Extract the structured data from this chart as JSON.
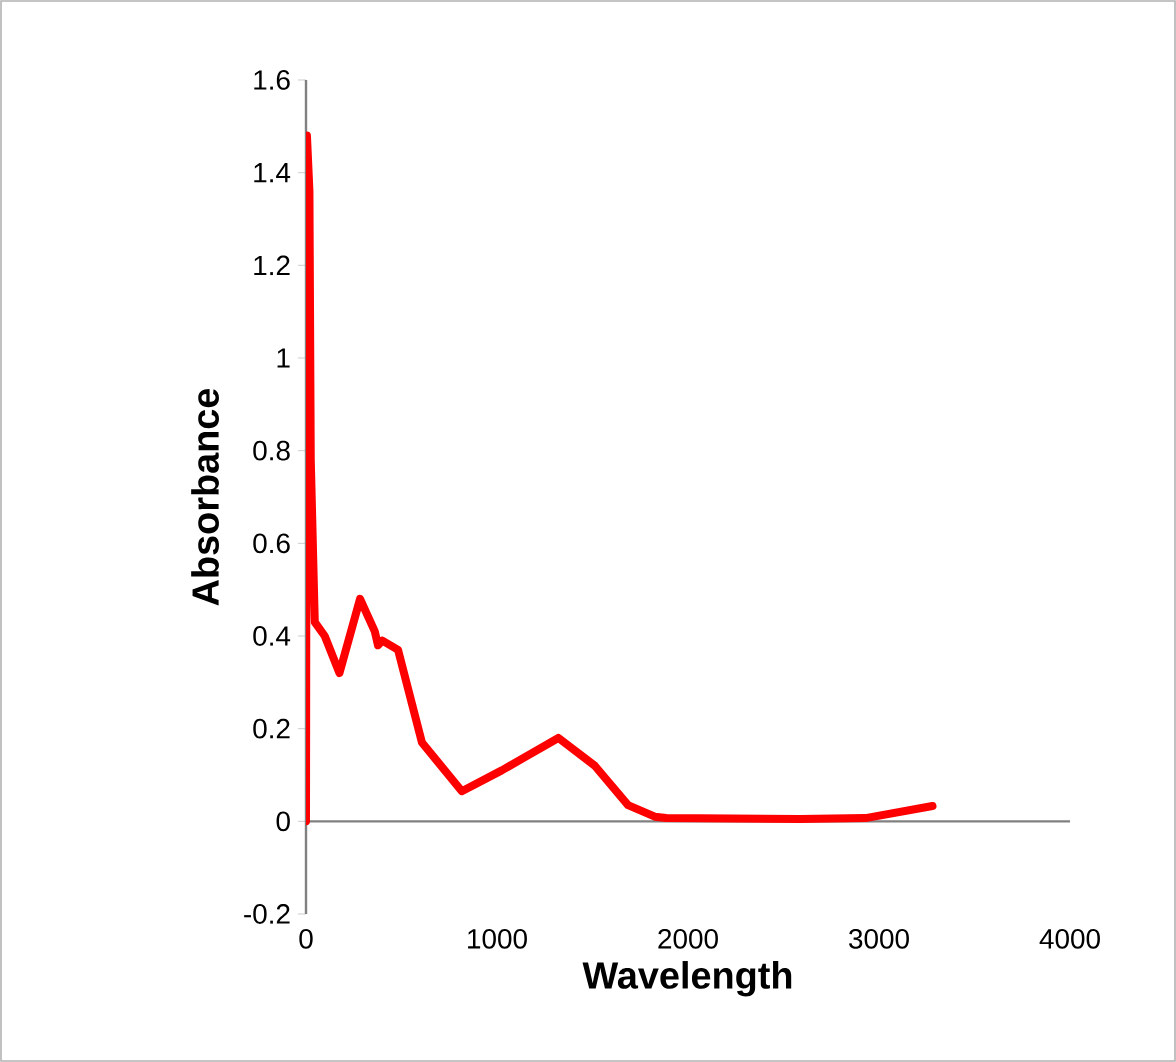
{
  "chart_data": {
    "type": "line",
    "xlabel": "Wavelength",
    "ylabel": "Absorbance",
    "x": [
      0,
      5,
      18,
      25,
      46,
      98,
      175,
      283,
      360,
      377,
      400,
      482,
      607,
      816,
      1025,
      1321,
      1512,
      1686,
      1826,
      1886,
      2586,
      2930,
      3280
    ],
    "series": [
      {
        "color": "#ff0000",
        "values": [
          0,
          1.48,
          1.36,
          0.78,
          0.43,
          0.4,
          0.32,
          0.48,
          0.41,
          0.38,
          0.39,
          0.37,
          0.17,
          0.065,
          0.11,
          0.18,
          0.12,
          0.035,
          0.01,
          0.007,
          0.005,
          0.007,
          0.033
        ]
      }
    ],
    "xlim": [
      0,
      4000
    ],
    "xticks": [
      0,
      1000,
      2000,
      3000,
      4000
    ],
    "ylim": [
      -0.2,
      1.6
    ],
    "yticks": [
      -0.2,
      0,
      0.2,
      0.4,
      0.6,
      0.8,
      1,
      1.2,
      1.4,
      1.6
    ],
    "marker": "none",
    "line_style": "solid"
  }
}
